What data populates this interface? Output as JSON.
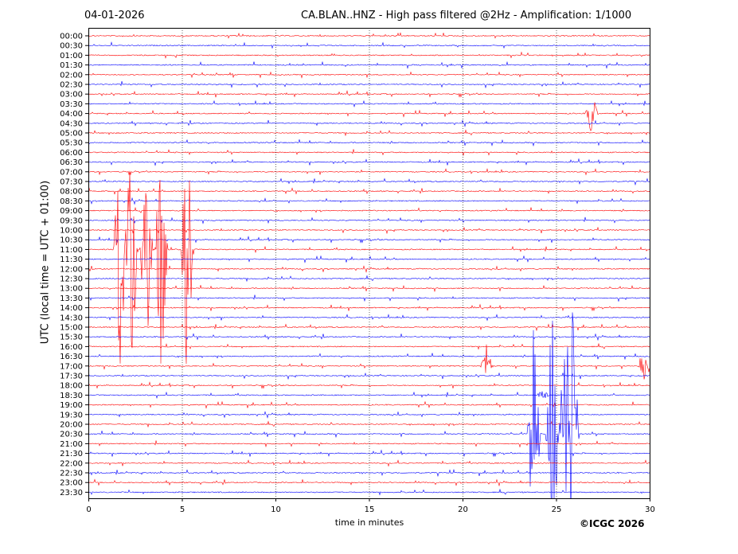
{
  "header": {
    "date": "04-01-2026",
    "title": "CA.BLAN..HNZ - High pass filtered @2Hz - Amplification: 1/1000"
  },
  "copyright": "©ICGC 2026",
  "chart_data": {
    "type": "line",
    "title": "CA.BLAN..HNZ - High pass filtered @2Hz - Amplification: 1/1000",
    "xlabel": "time in minutes",
    "ylabel": "UTC (local time = UTC + 01:00)",
    "xlim": [
      0,
      30
    ],
    "xticks": [
      0,
      5,
      10,
      15,
      20,
      25,
      30
    ],
    "grid": "vertical dotted lines every 5 minutes",
    "colors": {
      "even_hour_rows": "#ff0000",
      "half_hour_rows": "#0000ff"
    },
    "rows": [
      "00:00",
      "00:30",
      "01:00",
      "01:30",
      "02:00",
      "02:30",
      "03:00",
      "03:30",
      "04:00",
      "04:30",
      "05:00",
      "05:30",
      "06:00",
      "06:30",
      "07:00",
      "07:30",
      "08:00",
      "08:30",
      "09:00",
      "09:30",
      "10:00",
      "10:30",
      "11:00",
      "11:30",
      "12:00",
      "12:30",
      "13:00",
      "13:30",
      "14:00",
      "14:30",
      "15:00",
      "15:30",
      "16:00",
      "16:30",
      "17:00",
      "17:30",
      "18:00",
      "18:30",
      "19:00",
      "19:30",
      "20:00",
      "20:30",
      "21:00",
      "21:30",
      "22:00",
      "22:30",
      "23:00",
      "23:30"
    ],
    "events": [
      {
        "row": "04:00",
        "minute": 26.9,
        "amplitude": "medium"
      },
      {
        "row": "11:00",
        "minute": 1.7,
        "amplitude": "large"
      },
      {
        "row": "11:00",
        "minute": 2.3,
        "amplitude": "large"
      },
      {
        "row": "11:00",
        "minute": 3.1,
        "amplitude": "large"
      },
      {
        "row": "11:00",
        "minute": 3.9,
        "amplitude": "large"
      },
      {
        "row": "11:00",
        "minute": 5.3,
        "amplitude": "large"
      },
      {
        "row": "17:00",
        "minute": 21.3,
        "amplitude": "medium"
      },
      {
        "row": "17:00",
        "minute": 29.7,
        "amplitude": "medium"
      },
      {
        "row": "18:30",
        "minute": 24.3,
        "amplitude": "small"
      },
      {
        "row": "20:30",
        "minute": 23.8,
        "amplitude": "large"
      },
      {
        "row": "20:30",
        "minute": 24.8,
        "amplitude": "large"
      },
      {
        "row": "20:30",
        "minute": 25.5,
        "amplitude": "large"
      },
      {
        "row": "20:30",
        "minute": 25.9,
        "amplitude": "large"
      }
    ]
  }
}
